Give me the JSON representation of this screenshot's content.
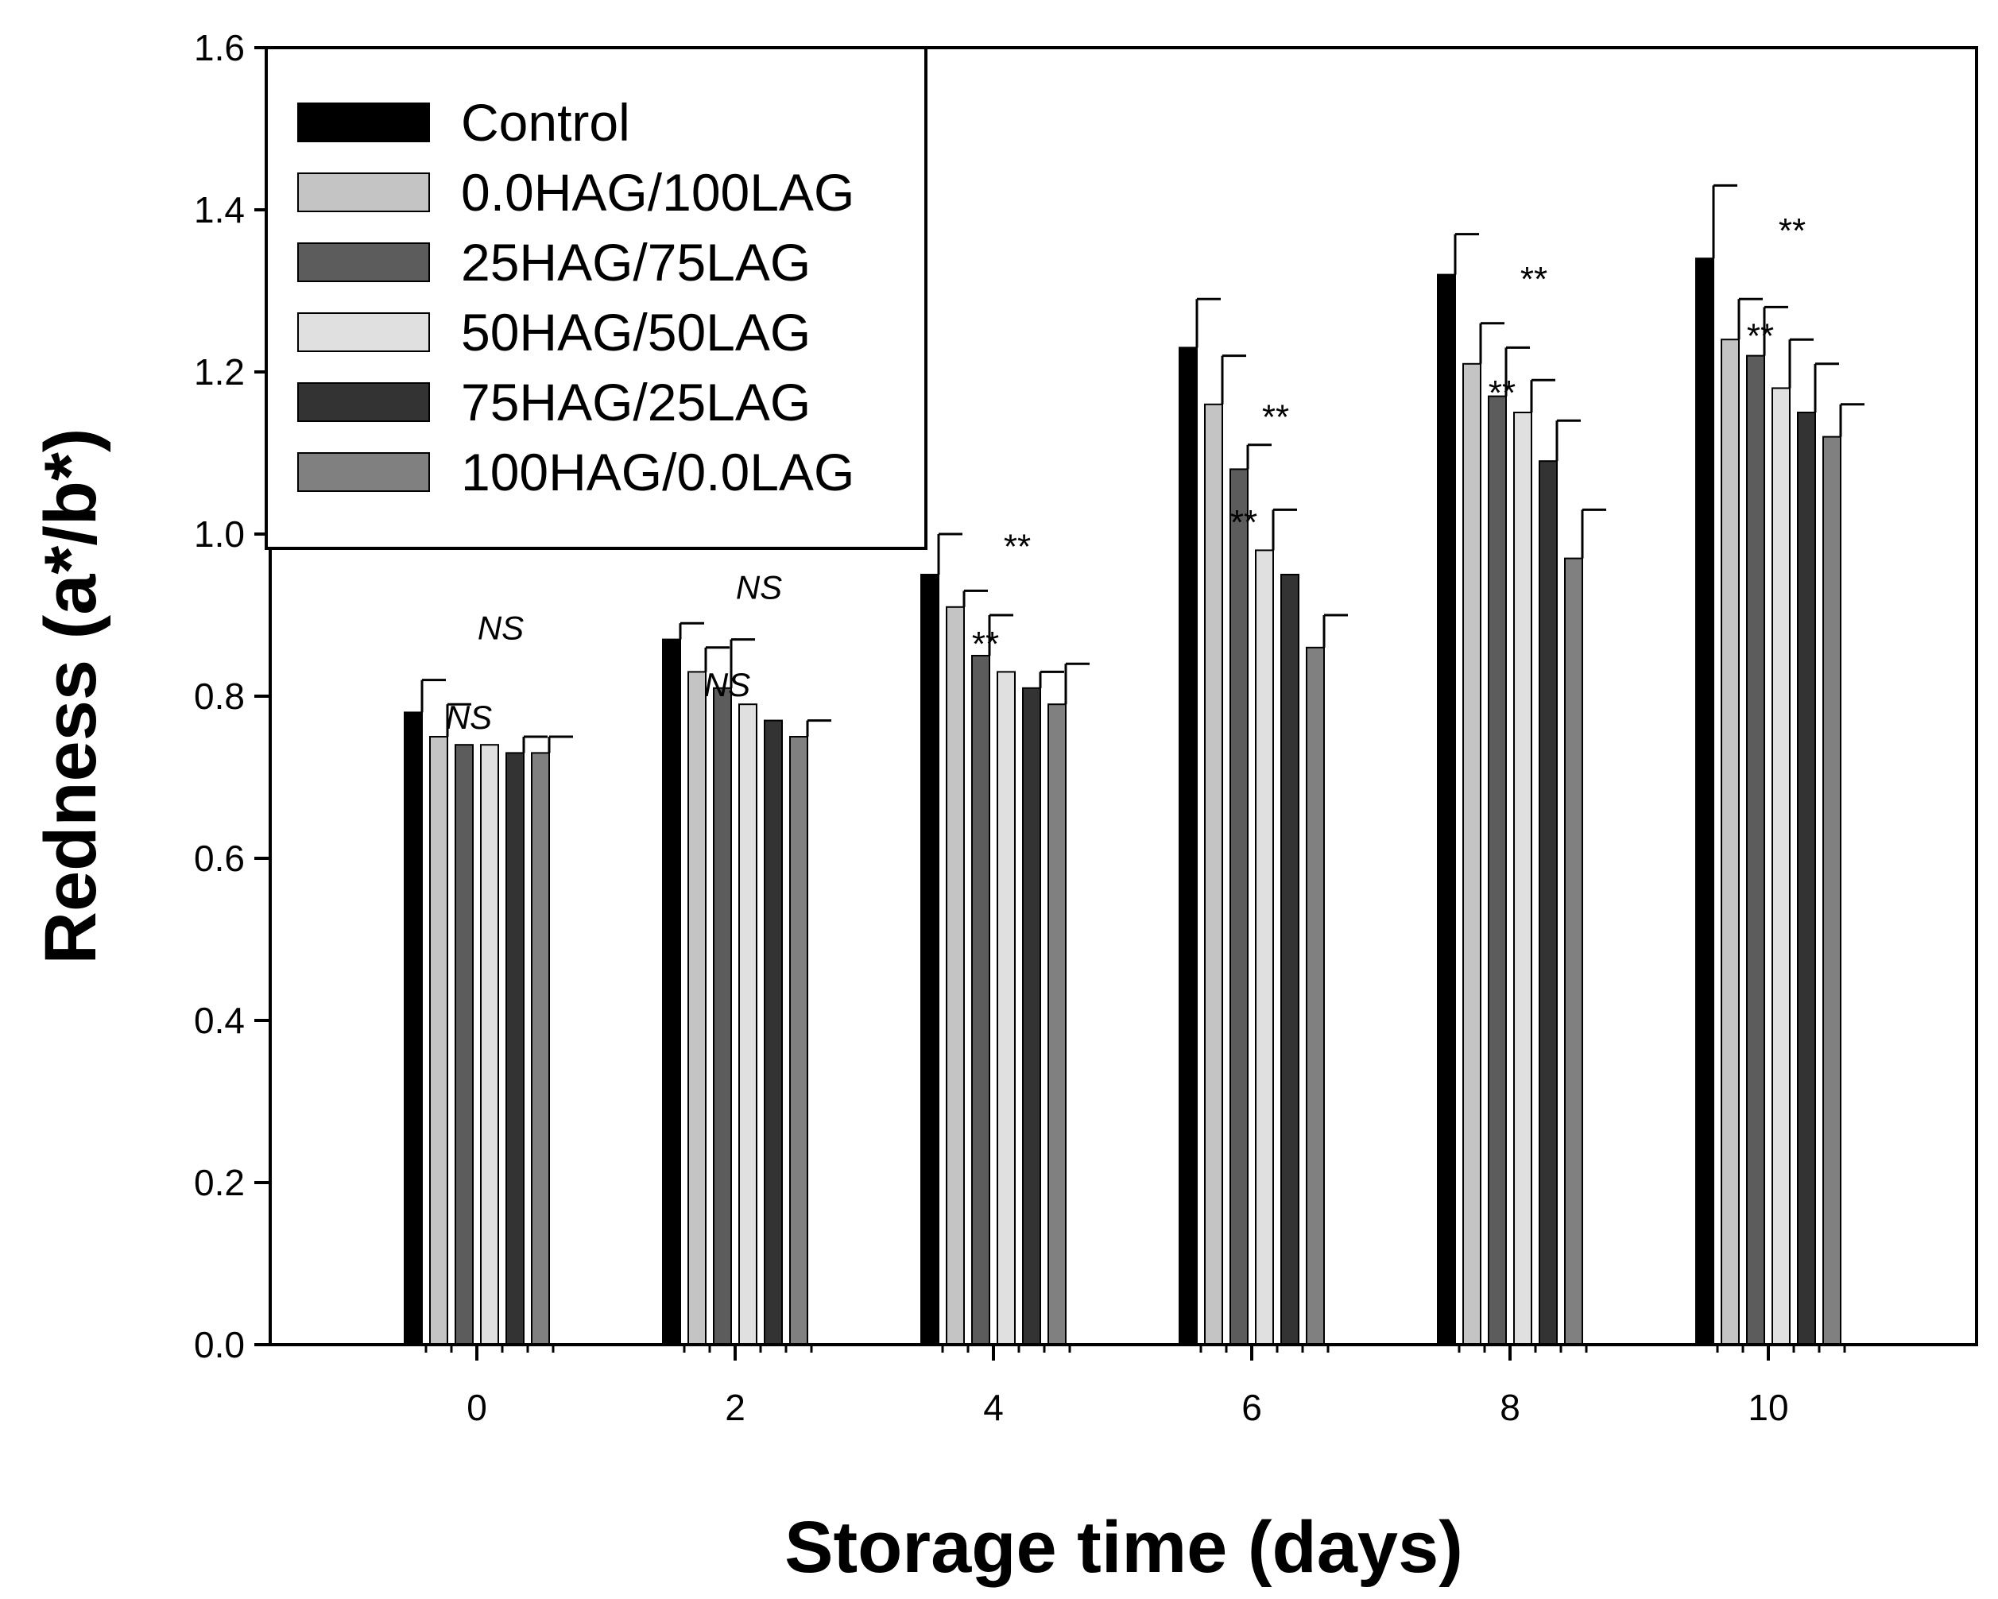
{
  "chart_data": {
    "type": "bar",
    "title": "",
    "xlabel": "Storage time (days)",
    "ylabel": "Redness (a*/b*)",
    "ylim": [
      0,
      1.6
    ],
    "grid": false,
    "legend_position": "top-left",
    "categories": [
      "0",
      "2",
      "4",
      "6",
      "8",
      "10"
    ],
    "yticks": [
      "0.0",
      "0.2",
      "0.4",
      "0.6",
      "0.8",
      "1.0",
      "1.2",
      "1.4",
      "1.6"
    ],
    "series": [
      {
        "name": "Control",
        "color": "#000000",
        "values": [
          0.78,
          0.87,
          0.95,
          1.23,
          1.32,
          1.34
        ],
        "errors": [
          0.04,
          0.02,
          0.05,
          0.06,
          0.05,
          0.09
        ]
      },
      {
        "name": "0.0HAG/100LAG",
        "color": "#c4c4c4",
        "values": [
          0.75,
          0.83,
          0.91,
          1.16,
          1.21,
          1.24
        ],
        "errors": [
          0.04,
          0.03,
          0.02,
          0.06,
          0.05,
          0.05
        ]
      },
      {
        "name": "25HAG/75LAG",
        "color": "#5c5c5c",
        "values": [
          0.74,
          0.81,
          0.85,
          1.08,
          1.17,
          1.22
        ],
        "errors": [
          0.0,
          0.06,
          0.05,
          0.03,
          0.06,
          0.06
        ]
      },
      {
        "name": "50HAG/50LAG",
        "color": "#e0e0e0",
        "values": [
          0.74,
          0.79,
          0.83,
          0.98,
          1.15,
          1.18
        ],
        "errors": [
          0.0,
          0.0,
          0.0,
          0.05,
          0.04,
          0.06
        ]
      },
      {
        "name": "75HAG/25LAG",
        "color": "#333333",
        "values": [
          0.73,
          0.77,
          0.81,
          0.95,
          1.09,
          1.15
        ],
        "errors": [
          0.02,
          0.0,
          0.02,
          0.0,
          0.05,
          0.06
        ]
      },
      {
        "name": "100HAG/0.0LAG",
        "color": "#808080",
        "values": [
          0.73,
          0.75,
          0.79,
          0.86,
          0.97,
          1.12
        ],
        "errors": [
          0.02,
          0.02,
          0.05,
          0.04,
          0.06,
          0.04
        ]
      }
    ],
    "annotations": [
      {
        "text": "NS",
        "italic": true,
        "category": "0",
        "y": 0.87
      },
      {
        "text": "NS",
        "italic": true,
        "category": "0",
        "y": 0.76
      },
      {
        "text": "NS",
        "italic": true,
        "category": "2",
        "y": 0.92
      },
      {
        "text": "NS",
        "italic": true,
        "category": "2",
        "y": 0.8
      },
      {
        "text": "**",
        "italic": false,
        "category": "4",
        "y": 0.97
      },
      {
        "text": "**",
        "italic": false,
        "category": "4",
        "y": 0.85
      },
      {
        "text": "**",
        "italic": false,
        "category": "6",
        "y": 1.13
      },
      {
        "text": "**",
        "italic": false,
        "category": "6",
        "y": 1.0
      },
      {
        "text": "**",
        "italic": false,
        "category": "8",
        "y": 1.3
      },
      {
        "text": "**",
        "italic": false,
        "category": "8",
        "y": 1.16
      },
      {
        "text": "**",
        "italic": false,
        "category": "10",
        "y": 1.36
      },
      {
        "text": "**",
        "italic": false,
        "category": "10",
        "y": 1.23
      }
    ]
  }
}
